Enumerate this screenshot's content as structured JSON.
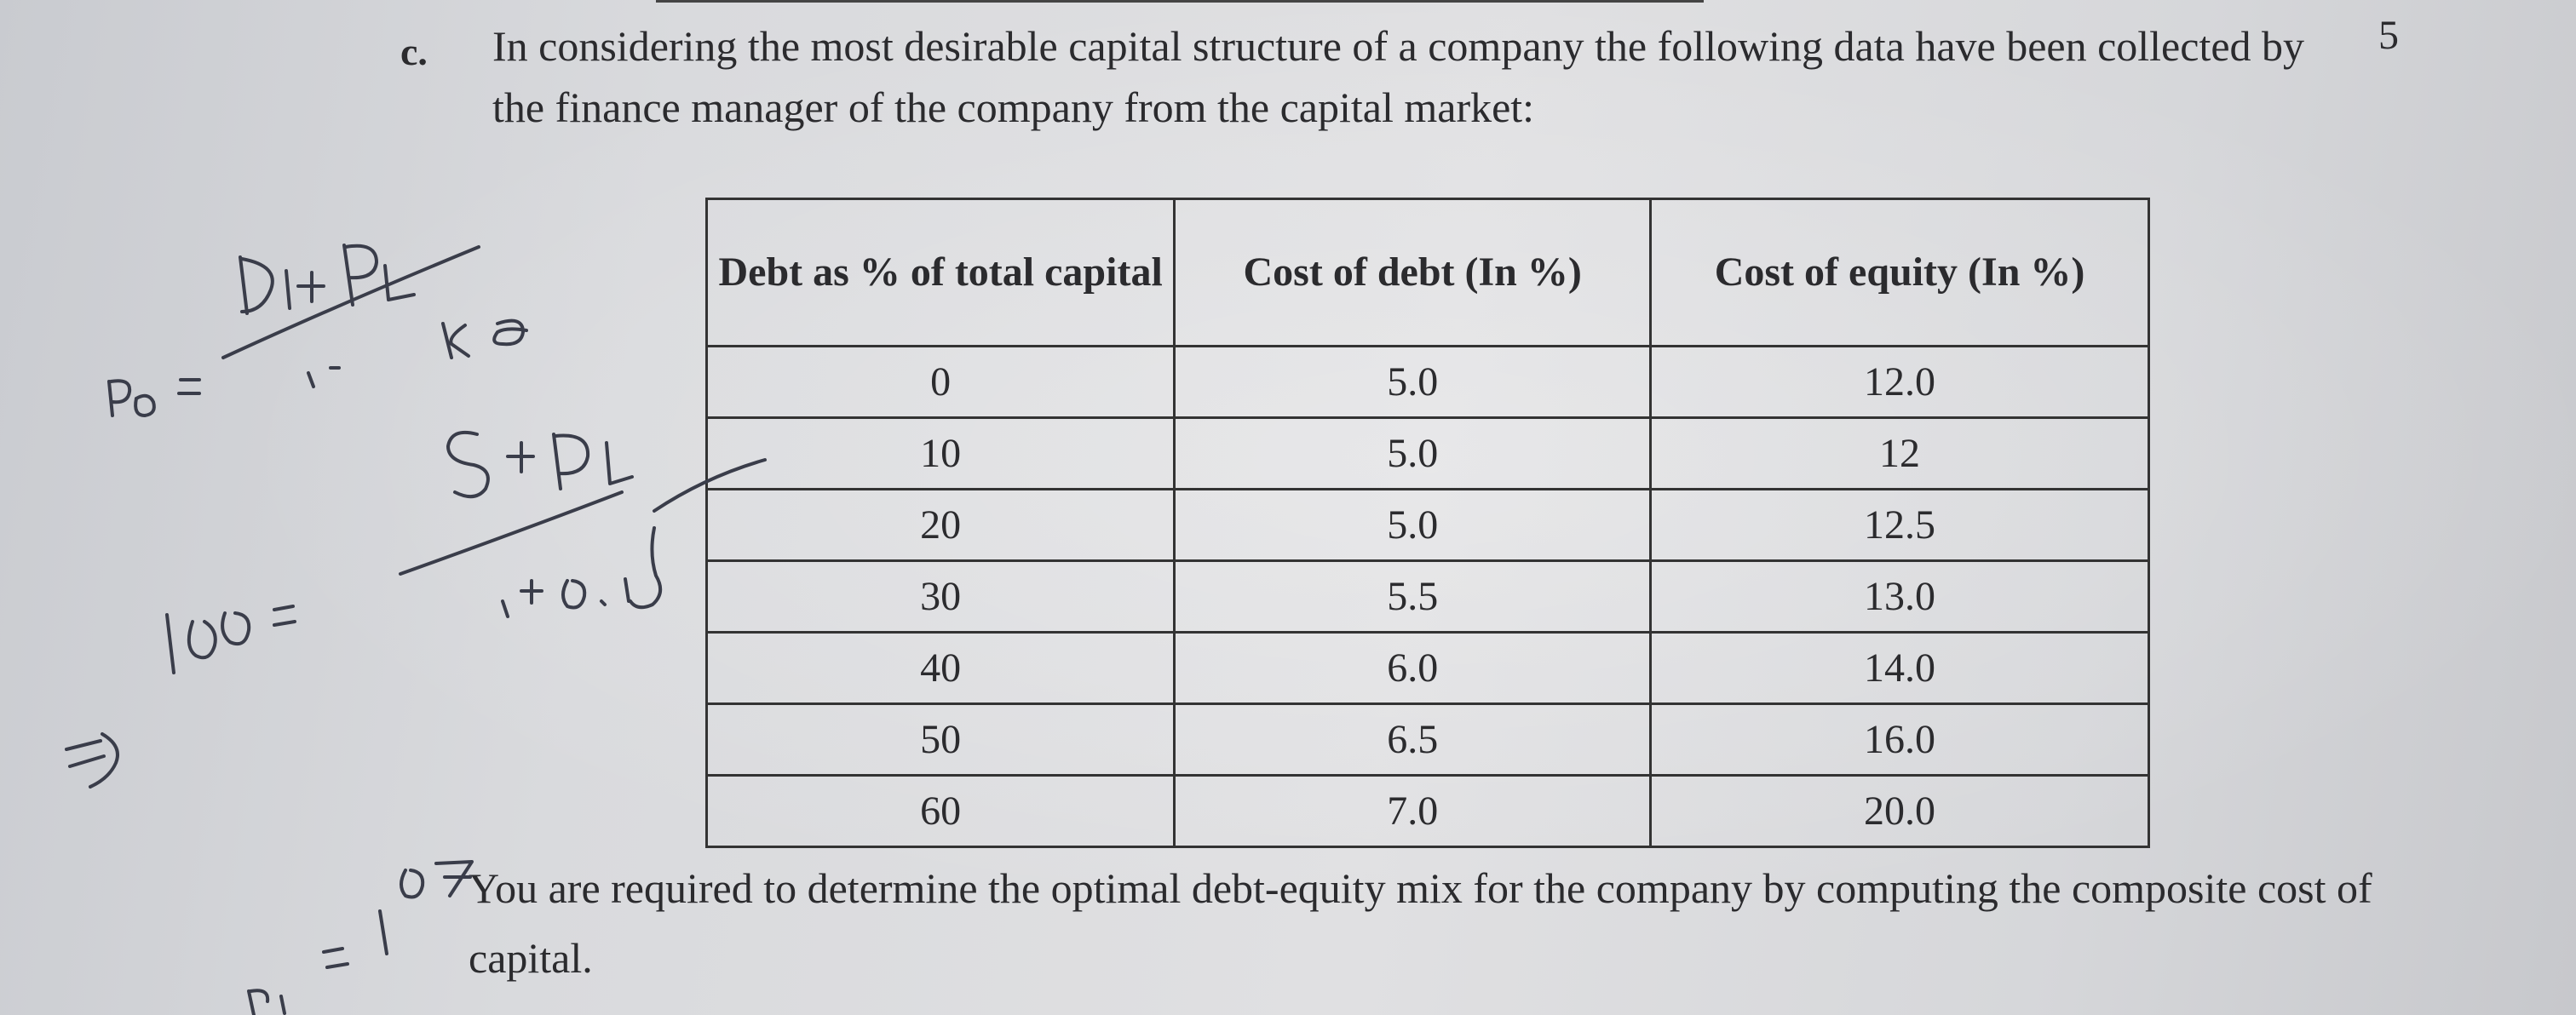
{
  "question": {
    "label": "c.",
    "marks": "5",
    "intro": "In considering the most desirable capital structure of a company the following data have been collected by the finance manager of the company from the capital market:"
  },
  "table": {
    "headers": [
      "Debt as % of total capital",
      "Cost of debt (In %)",
      "Cost of equity (In %)"
    ],
    "rows": [
      [
        "0",
        "5.0",
        "12.0"
      ],
      [
        "10",
        "5.0",
        "12"
      ],
      [
        "20",
        "5.0",
        "12.5"
      ],
      [
        "30",
        "5.5",
        "13.0"
      ],
      [
        "40",
        "6.0",
        "14.0"
      ],
      [
        "50",
        "6.5",
        "16.0"
      ],
      [
        "60",
        "7.0",
        "20.0"
      ]
    ]
  },
  "requirement": "You are required to determine the optimal debt-equity mix for the company by computing the composite cost of capital.",
  "ink_color": "#3a3d4a"
}
